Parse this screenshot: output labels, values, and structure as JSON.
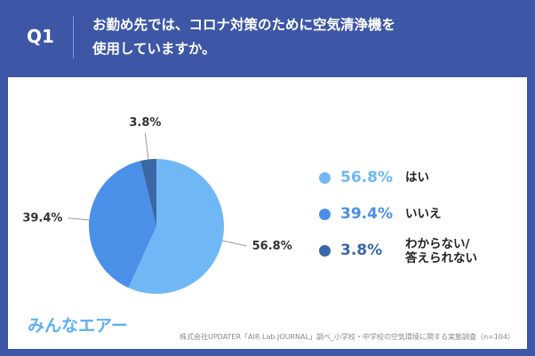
{
  "header": {
    "q_label": "Q1",
    "question_line1": "お勤め先では、コロナ対策のために空気清浄機を",
    "question_line2": "使用していますか。"
  },
  "chart_data": {
    "type": "pie",
    "categories": [
      "はい",
      "いいえ",
      "わからない/答えられない"
    ],
    "values": [
      56.8,
      39.4,
      3.8
    ],
    "value_labels": [
      "56.8%",
      "39.4%",
      "3.8%"
    ],
    "colors": [
      "#6fb8f5",
      "#4a90e8",
      "#3a67a6"
    ]
  },
  "legend": [
    {
      "pct": "56.8%",
      "label_line1": "はい",
      "label_line2": "",
      "color": "#6fb8f5"
    },
    {
      "pct": "39.4%",
      "label_line1": "いいえ",
      "label_line2": "",
      "color": "#4a90e8"
    },
    {
      "pct": "3.8%",
      "label_line1": "わからない/",
      "label_line2": "答えられない",
      "color": "#3a67a6"
    }
  ],
  "footer": {
    "logo": "みんなエアー",
    "source": "株式会社UPDATER「AIR Lab.JOURNAL」調べ_小学校・中学校の空気環境に関する実態調査（n=104）"
  }
}
